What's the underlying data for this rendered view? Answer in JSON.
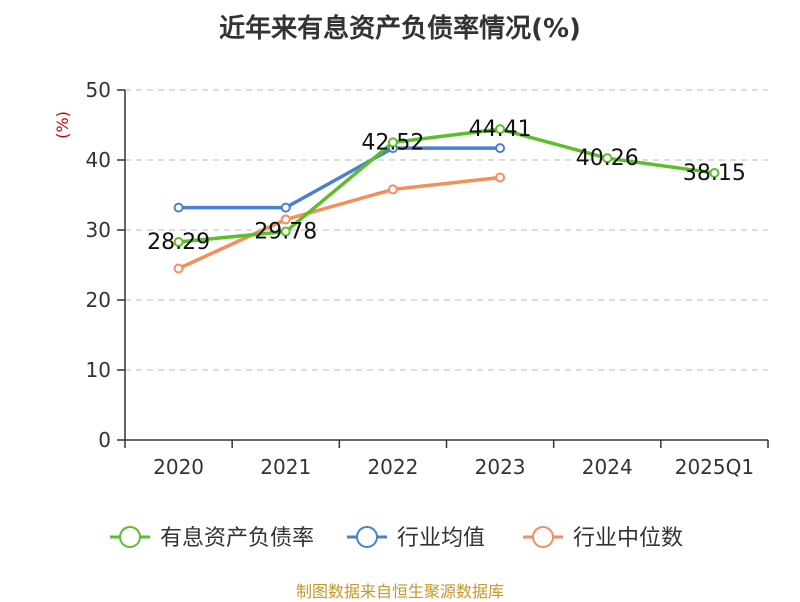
{
  "title": "近年来有息资产负债率情况(%)",
  "source": "制图数据来自恒生聚源数据库",
  "chart_data": {
    "type": "line",
    "categories": [
      "2020",
      "2021",
      "2022",
      "2023",
      "2024",
      "2025Q1"
    ],
    "ylabel": "(%)",
    "ylim": [
      0,
      50
    ],
    "yticks": [
      0,
      10,
      20,
      30,
      40,
      50
    ],
    "grid": true,
    "legend_position": "bottom",
    "series": [
      {
        "name": "有息资产负债率",
        "color": "#5cbf2a",
        "values": [
          28.29,
          29.78,
          42.52,
          44.41,
          40.26,
          38.15
        ],
        "labels": [
          "28.29",
          "29.78",
          "42.52",
          "44.41",
          "40.26",
          "38.15"
        ]
      },
      {
        "name": "行业均值",
        "color": "#4a7fd4",
        "values": [
          33.2,
          33.2,
          41.7,
          41.7,
          null,
          null
        ]
      },
      {
        "name": "行业中位数",
        "color": "#f58e5c",
        "values": [
          24.5,
          31.5,
          35.8,
          37.5,
          null,
          null
        ]
      }
    ]
  }
}
